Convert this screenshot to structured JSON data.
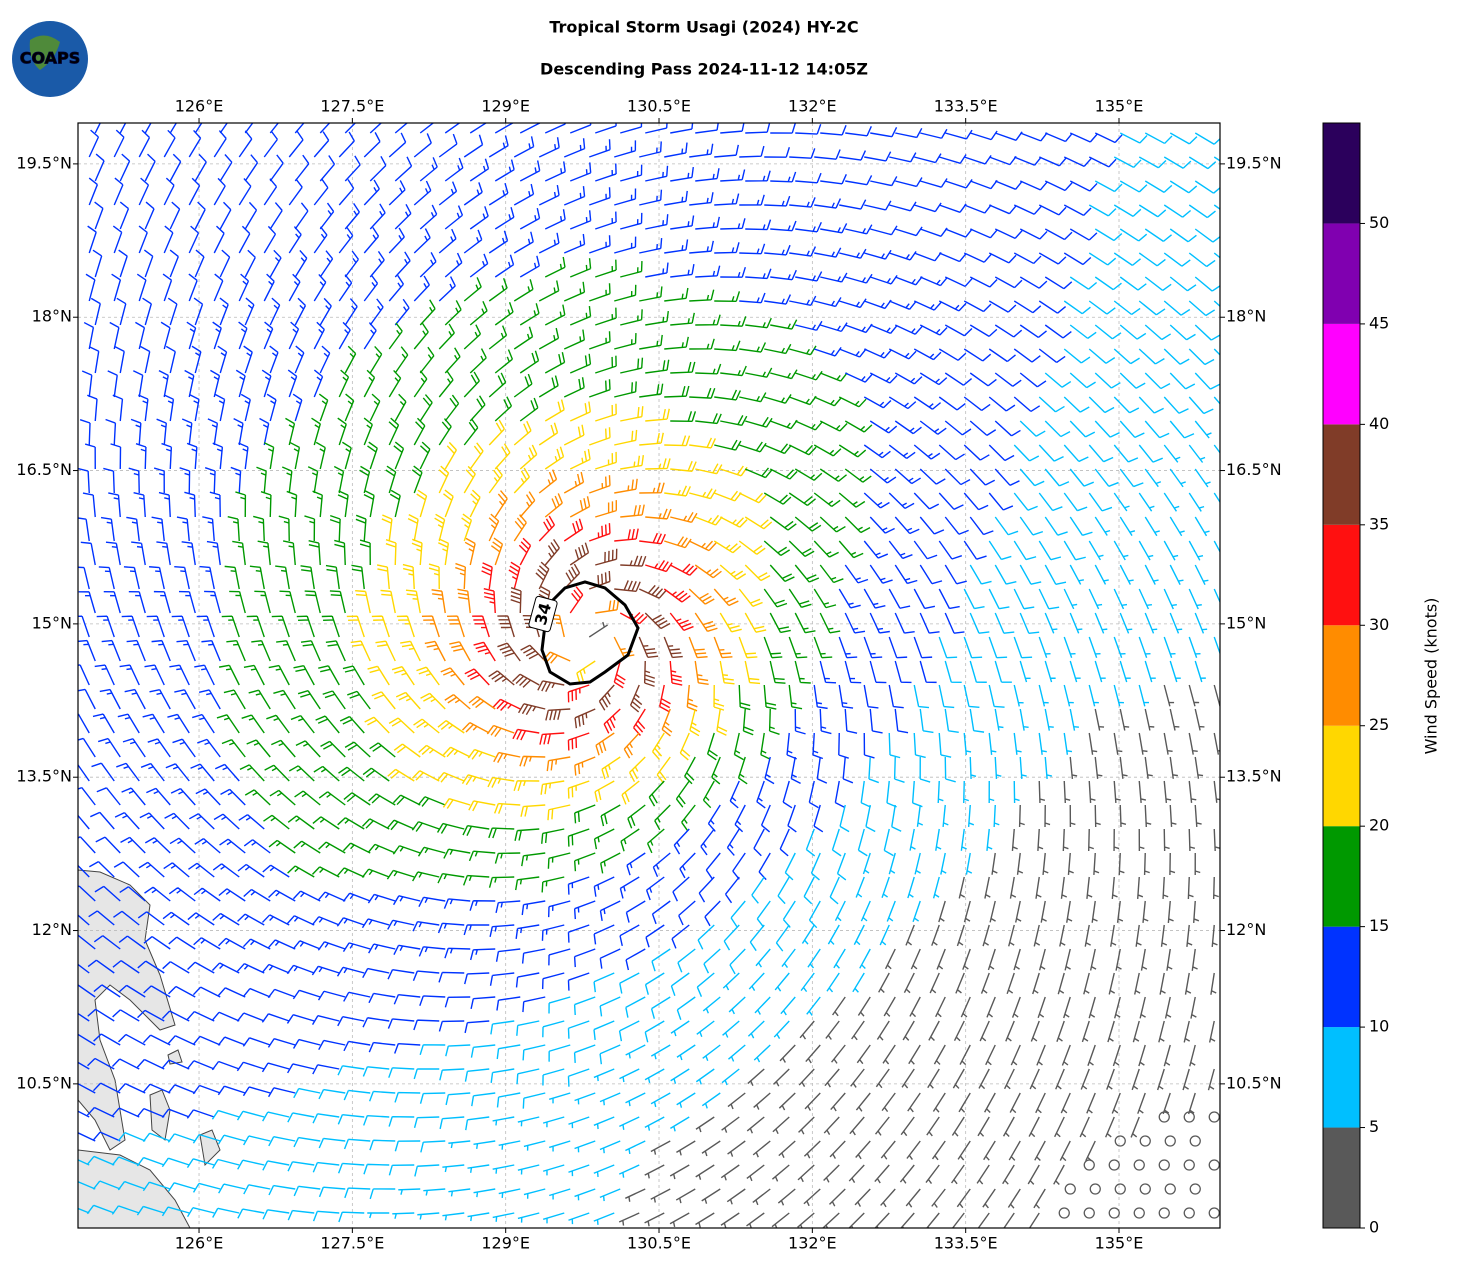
{
  "chart_data": {
    "type": "wind-barb-map",
    "title": "Tropical Storm Usagi (2024) HY-2C",
    "subtitle": "Descending Pass 2024-11-12 14:05Z",
    "logo": "COAPS",
    "xlim": [
      124.816,
      135.988
    ],
    "ylim": [
      9.09,
      19.9
    ],
    "xticks": [
      {
        "value": 126,
        "label": "126°E"
      },
      {
        "value": 127.5,
        "label": "127.5°E"
      },
      {
        "value": 129,
        "label": "129°E"
      },
      {
        "value": 130.5,
        "label": "130.5°E"
      },
      {
        "value": 132,
        "label": "132°E"
      },
      {
        "value": 133.5,
        "label": "133.5°E"
      },
      {
        "value": 135,
        "label": "135°E"
      }
    ],
    "yticks": [
      {
        "value": 10.5,
        "label": "10.5°N"
      },
      {
        "value": 12,
        "label": "12°N"
      },
      {
        "value": 13.5,
        "label": "13.5°N"
      },
      {
        "value": 15,
        "label": "15°N"
      },
      {
        "value": 16.5,
        "label": "16.5°N"
      },
      {
        "value": 18,
        "label": "18°N"
      },
      {
        "value": 19.5,
        "label": "19.5°N"
      }
    ],
    "grid": true,
    "contour": {
      "level": 34
    },
    "colorbar": {
      "label": "Wind Speed (knots)",
      "lim": [
        0,
        55
      ],
      "bins": [
        0,
        5,
        10,
        15,
        20,
        25,
        30,
        35,
        40,
        45,
        50,
        55
      ],
      "colors": [
        "#595959",
        "#00bfff",
        "#0033ff",
        "#009900",
        "#ffd700",
        "#ff8c00",
        "#ff1010",
        "#803c28",
        "#ff00ff",
        "#8000b0",
        "#2b005c"
      ],
      "ticks": [
        0,
        5,
        10,
        15,
        20,
        25,
        30,
        35,
        40,
        45,
        50
      ]
    }
  }
}
